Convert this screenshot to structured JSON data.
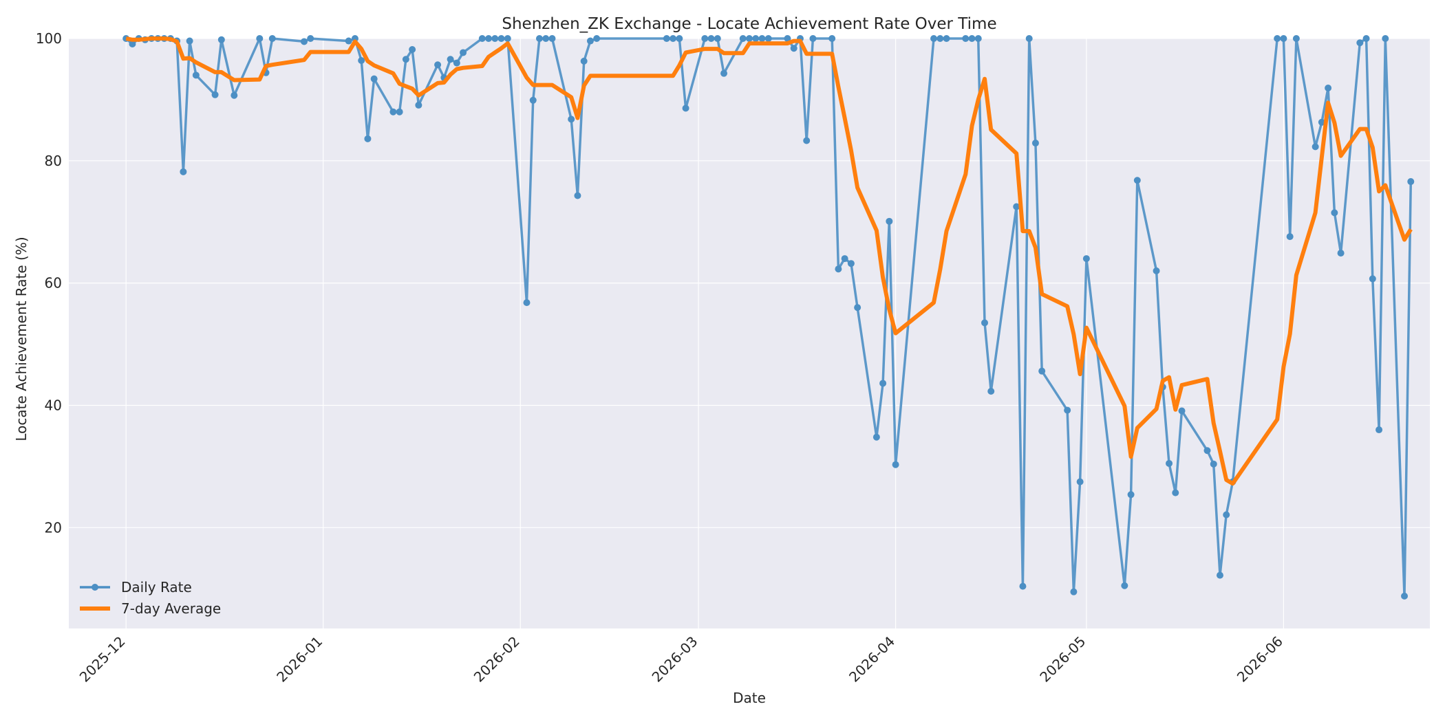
{
  "chart_data": {
    "type": "line",
    "title": "Shenzhen_ZK Exchange - Locate Achievement Rate Over Time",
    "xlabel": "Date",
    "ylabel": "Locate Achievement Rate (%)",
    "x_range": [
      "2025-11-22",
      "2026-06-24"
    ],
    "ylim": [
      3.5,
      100
    ],
    "x_ticks": [
      {
        "date": "2025-12-01",
        "label": "2025-12"
      },
      {
        "date": "2026-01-01",
        "label": "2026-01"
      },
      {
        "date": "2026-02-01",
        "label": "2026-02"
      },
      {
        "date": "2026-03-01",
        "label": "2026-03"
      },
      {
        "date": "2026-04-01",
        "label": "2026-04"
      },
      {
        "date": "2026-05-01",
        "label": "2026-05"
      },
      {
        "date": "2026-06-01",
        "label": "2026-06"
      }
    ],
    "y_ticks": [
      20,
      40,
      60,
      80,
      100
    ],
    "grid": true,
    "legend_position": "bottom-left",
    "colors": {
      "background": "#eaeaf2",
      "grid": "#ffffff",
      "daily": "#4c8fc4",
      "average": "#ff7f0e"
    },
    "series": [
      {
        "name": "Daily Rate",
        "style": "line-marker",
        "points": [
          [
            "2025-12-01",
            100
          ],
          [
            "2025-12-02",
            99.1
          ],
          [
            "2025-12-03",
            100
          ],
          [
            "2025-12-04",
            99.8
          ],
          [
            "2025-12-05",
            100
          ],
          [
            "2025-12-06",
            100
          ],
          [
            "2025-12-07",
            100
          ],
          [
            "2025-12-08",
            100
          ],
          [
            "2025-12-09",
            99.6
          ],
          [
            "2025-12-10",
            78.2
          ],
          [
            "2025-12-11",
            99.6
          ],
          [
            "2025-12-12",
            94
          ],
          [
            "2025-12-15",
            90.8
          ],
          [
            "2025-12-16",
            99.8
          ],
          [
            "2025-12-18",
            90.7
          ],
          [
            "2025-12-22",
            100
          ],
          [
            "2025-12-23",
            94.4
          ],
          [
            "2025-12-24",
            100
          ],
          [
            "2025-12-29",
            99.5
          ],
          [
            "2025-12-30",
            100
          ],
          [
            "2026-01-05",
            99.6
          ],
          [
            "2026-01-06",
            100
          ],
          [
            "2026-01-07",
            96.4
          ],
          [
            "2026-01-08",
            83.6
          ],
          [
            "2026-01-09",
            93.4
          ],
          [
            "2026-01-12",
            88
          ],
          [
            "2026-01-13",
            88
          ],
          [
            "2026-01-14",
            96.6
          ],
          [
            "2026-01-15",
            98.2
          ],
          [
            "2026-01-16",
            89.1
          ],
          [
            "2026-01-19",
            95.7
          ],
          [
            "2026-01-20",
            93.6
          ],
          [
            "2026-01-21",
            96.6
          ],
          [
            "2026-01-22",
            96
          ],
          [
            "2026-01-23",
            97.7
          ],
          [
            "2026-01-26",
            100
          ],
          [
            "2026-01-27",
            100
          ],
          [
            "2026-01-28",
            100
          ],
          [
            "2026-01-29",
            100
          ],
          [
            "2026-01-30",
            100
          ],
          [
            "2026-02-02",
            56.8
          ],
          [
            "2026-02-03",
            89.9
          ],
          [
            "2026-02-04",
            100
          ],
          [
            "2026-02-05",
            100
          ],
          [
            "2026-02-06",
            100
          ],
          [
            "2026-02-09",
            86.8
          ],
          [
            "2026-02-10",
            74.3
          ],
          [
            "2026-02-11",
            96.3
          ],
          [
            "2026-02-12",
            99.6
          ],
          [
            "2026-02-13",
            100
          ],
          [
            "2026-02-24",
            100
          ],
          [
            "2026-02-25",
            100
          ],
          [
            "2026-02-26",
            100
          ],
          [
            "2026-02-27",
            88.6
          ],
          [
            "2026-03-02",
            100
          ],
          [
            "2026-03-03",
            100
          ],
          [
            "2026-03-04",
            100
          ],
          [
            "2026-03-05",
            94.3
          ],
          [
            "2026-03-08",
            100
          ],
          [
            "2026-03-09",
            100
          ],
          [
            "2026-03-10",
            100
          ],
          [
            "2026-03-11",
            100
          ],
          [
            "2026-03-12",
            100
          ],
          [
            "2026-03-15",
            100
          ],
          [
            "2026-03-16",
            98.4
          ],
          [
            "2026-03-17",
            100
          ],
          [
            "2026-03-18",
            83.3
          ],
          [
            "2026-03-19",
            100
          ],
          [
            "2026-03-22",
            100
          ],
          [
            "2026-03-23",
            62.3
          ],
          [
            "2026-03-24",
            64
          ],
          [
            "2026-03-25",
            63.2
          ],
          [
            "2026-03-26",
            56
          ],
          [
            "2026-03-29",
            34.8
          ],
          [
            "2026-03-30",
            43.6
          ],
          [
            "2026-03-31",
            70.1
          ],
          [
            "2026-04-01",
            30.3
          ],
          [
            "2026-04-07",
            100
          ],
          [
            "2026-04-08",
            100
          ],
          [
            "2026-04-09",
            100
          ],
          [
            "2026-04-12",
            100
          ],
          [
            "2026-04-13",
            100
          ],
          [
            "2026-04-14",
            100
          ],
          [
            "2026-04-15",
            53.5
          ],
          [
            "2026-04-16",
            42.3
          ],
          [
            "2026-04-20",
            72.5
          ],
          [
            "2026-04-21",
            10.4
          ],
          [
            "2026-04-22",
            100
          ],
          [
            "2026-04-23",
            82.9
          ],
          [
            "2026-04-24",
            45.6
          ],
          [
            "2026-04-28",
            39.2
          ],
          [
            "2026-04-29",
            9.5
          ],
          [
            "2026-04-30",
            27.5
          ],
          [
            "2026-05-01",
            64
          ],
          [
            "2026-05-07",
            10.5
          ],
          [
            "2026-05-08",
            25.4
          ],
          [
            "2026-05-09",
            76.8
          ],
          [
            "2026-05-12",
            62
          ],
          [
            "2026-05-13",
            43
          ],
          [
            "2026-05-14",
            30.5
          ],
          [
            "2026-05-15",
            25.7
          ],
          [
            "2026-05-16",
            39.1
          ],
          [
            "2026-05-20",
            32.6
          ],
          [
            "2026-05-21",
            30.4
          ],
          [
            "2026-05-22",
            12.2
          ],
          [
            "2026-05-23",
            22.1
          ],
          [
            "2026-05-24",
            27.5
          ],
          [
            "2026-05-31",
            100
          ],
          [
            "2026-06-01",
            100
          ],
          [
            "2026-06-02",
            67.6
          ],
          [
            "2026-06-03",
            100
          ],
          [
            "2026-06-06",
            82.3
          ],
          [
            "2026-06-07",
            86.3
          ],
          [
            "2026-06-08",
            91.9
          ],
          [
            "2026-06-09",
            71.5
          ],
          [
            "2026-06-10",
            64.9
          ],
          [
            "2026-06-13",
            99.3
          ],
          [
            "2026-06-14",
            100
          ],
          [
            "2026-06-15",
            60.7
          ],
          [
            "2026-06-16",
            36
          ],
          [
            "2026-06-17",
            100
          ],
          [
            "2026-06-20",
            8.8
          ],
          [
            "2026-06-21",
            76.6
          ]
        ]
      },
      {
        "name": "7-day Average",
        "style": "line",
        "points": [
          [
            "2025-12-01",
            100
          ],
          [
            "2025-12-02",
            99.8
          ],
          [
            "2025-12-03",
            99.8
          ],
          [
            "2025-12-04",
            99.9
          ],
          [
            "2025-12-05",
            100
          ],
          [
            "2025-12-06",
            100
          ],
          [
            "2025-12-07",
            100
          ],
          [
            "2025-12-08",
            99.9
          ],
          [
            "2025-12-09",
            99.5
          ],
          [
            "2025-12-10",
            96.7
          ],
          [
            "2025-12-11",
            96.8
          ],
          [
            "2025-12-12",
            96.1
          ],
          [
            "2025-12-15",
            94.5
          ],
          [
            "2025-12-16",
            94.5
          ],
          [
            "2025-12-18",
            93.2
          ],
          [
            "2025-12-22",
            93.3
          ],
          [
            "2025-12-23",
            95.5
          ],
          [
            "2025-12-24",
            95.7
          ],
          [
            "2025-12-29",
            96.5
          ],
          [
            "2025-12-30",
            97.8
          ],
          [
            "2026-01-05",
            97.8
          ],
          [
            "2026-01-06",
            99.5
          ],
          [
            "2026-01-07",
            98.3
          ],
          [
            "2026-01-08",
            96.3
          ],
          [
            "2026-01-09",
            95.6
          ],
          [
            "2026-01-12",
            94.3
          ],
          [
            "2026-01-13",
            92.6
          ],
          [
            "2026-01-14",
            92.2
          ],
          [
            "2026-01-15",
            91.8
          ],
          [
            "2026-01-16",
            90.7
          ],
          [
            "2026-01-19",
            92.7
          ],
          [
            "2026-01-20",
            92.8
          ],
          [
            "2026-01-21",
            94.1
          ],
          [
            "2026-01-22",
            95
          ],
          [
            "2026-01-23",
            95.2
          ],
          [
            "2026-01-26",
            95.5
          ],
          [
            "2026-01-27",
            97
          ],
          [
            "2026-01-28",
            97.7
          ],
          [
            "2026-01-29",
            98.4
          ],
          [
            "2026-01-30",
            99.2
          ],
          [
            "2026-02-02",
            93.6
          ],
          [
            "2026-02-03",
            92.4
          ],
          [
            "2026-02-04",
            92.4
          ],
          [
            "2026-02-05",
            92.4
          ],
          [
            "2026-02-06",
            92.4
          ],
          [
            "2026-02-09",
            90.4
          ],
          [
            "2026-02-10",
            87
          ],
          [
            "2026-02-11",
            92.3
          ],
          [
            "2026-02-12",
            93.9
          ],
          [
            "2026-02-13",
            93.9
          ],
          [
            "2026-02-24",
            93.9
          ],
          [
            "2026-02-25",
            93.9
          ],
          [
            "2026-02-26",
            95.6
          ],
          [
            "2026-02-27",
            97.7
          ],
          [
            "2026-03-02",
            98.3
          ],
          [
            "2026-03-03",
            98.3
          ],
          [
            "2026-03-04",
            98.3
          ],
          [
            "2026-03-05",
            97.6
          ],
          [
            "2026-03-08",
            97.6
          ],
          [
            "2026-03-09",
            99.2
          ],
          [
            "2026-03-10",
            99.2
          ],
          [
            "2026-03-11",
            99.2
          ],
          [
            "2026-03-12",
            99.2
          ],
          [
            "2026-03-15",
            99.2
          ],
          [
            "2026-03-16",
            99.6
          ],
          [
            "2026-03-17",
            99.6
          ],
          [
            "2026-03-18",
            97.5
          ],
          [
            "2026-03-19",
            97.5
          ],
          [
            "2026-03-22",
            97.5
          ],
          [
            "2026-03-23",
            92.1
          ],
          [
            "2026-03-24",
            87
          ],
          [
            "2026-03-25",
            81.7
          ],
          [
            "2026-03-26",
            75.6
          ],
          [
            "2026-03-29",
            68.6
          ],
          [
            "2026-03-30",
            60.9
          ],
          [
            "2026-03-31",
            55.7
          ],
          [
            "2026-04-01",
            51.8
          ],
          [
            "2026-04-07",
            56.8
          ],
          [
            "2026-04-08",
            62.2
          ],
          [
            "2026-04-09",
            68.5
          ],
          [
            "2026-04-12",
            77.8
          ],
          [
            "2026-04-13",
            85.7
          ],
          [
            "2026-04-14",
            90
          ],
          [
            "2026-04-15",
            93.4
          ],
          [
            "2026-04-16",
            85.1
          ],
          [
            "2026-04-20",
            81.2
          ],
          [
            "2026-04-21",
            68.5
          ],
          [
            "2026-04-22",
            68.5
          ],
          [
            "2026-04-23",
            65.8
          ],
          [
            "2026-04-24",
            58.2
          ],
          [
            "2026-04-28",
            56.2
          ],
          [
            "2026-04-29",
            51.6
          ],
          [
            "2026-04-30",
            45.1
          ],
          [
            "2026-05-01",
            52.7
          ],
          [
            "2026-05-07",
            39.9
          ],
          [
            "2026-05-08",
            31.6
          ],
          [
            "2026-05-09",
            36.3
          ],
          [
            "2026-05-12",
            39.4
          ],
          [
            "2026-05-13",
            44
          ],
          [
            "2026-05-14",
            44.6
          ],
          [
            "2026-05-15",
            39.3
          ],
          [
            "2026-05-16",
            43.3
          ],
          [
            "2026-05-20",
            44.3
          ],
          [
            "2026-05-21",
            37.1
          ],
          [
            "2026-05-22",
            32.5
          ],
          [
            "2026-05-23",
            27.8
          ],
          [
            "2026-05-24",
            27.2
          ],
          [
            "2026-05-31",
            37.7
          ],
          [
            "2026-06-01",
            46.3
          ],
          [
            "2026-06-02",
            51.7
          ],
          [
            "2026-06-03",
            61.3
          ],
          [
            "2026-06-06",
            71.5
          ],
          [
            "2026-06-07",
            80.6
          ],
          [
            "2026-06-08",
            89.5
          ],
          [
            "2026-06-09",
            86.2
          ],
          [
            "2026-06-10",
            80.8
          ],
          [
            "2026-06-13",
            85.2
          ],
          [
            "2026-06-14",
            85.2
          ],
          [
            "2026-06-15",
            82.2
          ],
          [
            "2026-06-16",
            75
          ],
          [
            "2026-06-17",
            76
          ],
          [
            "2026-06-20",
            67.1
          ],
          [
            "2026-06-21",
            68.8
          ]
        ]
      }
    ]
  }
}
